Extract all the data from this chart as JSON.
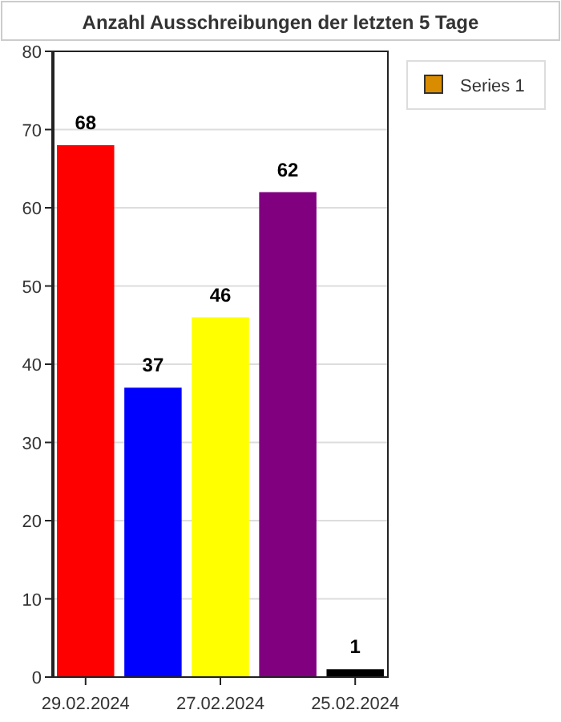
{
  "chart_data": {
    "type": "bar",
    "title": "Anzahl Ausschreibungen der letzten 5 Tage",
    "categories": [
      "29.02.2024",
      null,
      "27.02.2024",
      null,
      "25.02.2024"
    ],
    "series": [
      {
        "name": "Series 1",
        "color": "#d98c00",
        "colors": [
          "#ff0000",
          "#0000ff",
          "#ffff00",
          "#800080",
          "#000000"
        ],
        "values": [
          68,
          37,
          46,
          62,
          1
        ]
      }
    ],
    "ylim": [
      0,
      80
    ],
    "yticks": [
      0,
      10,
      20,
      30,
      40,
      50,
      60,
      70,
      80
    ],
    "grid": "y",
    "legend": "top right",
    "data_labels": true
  }
}
